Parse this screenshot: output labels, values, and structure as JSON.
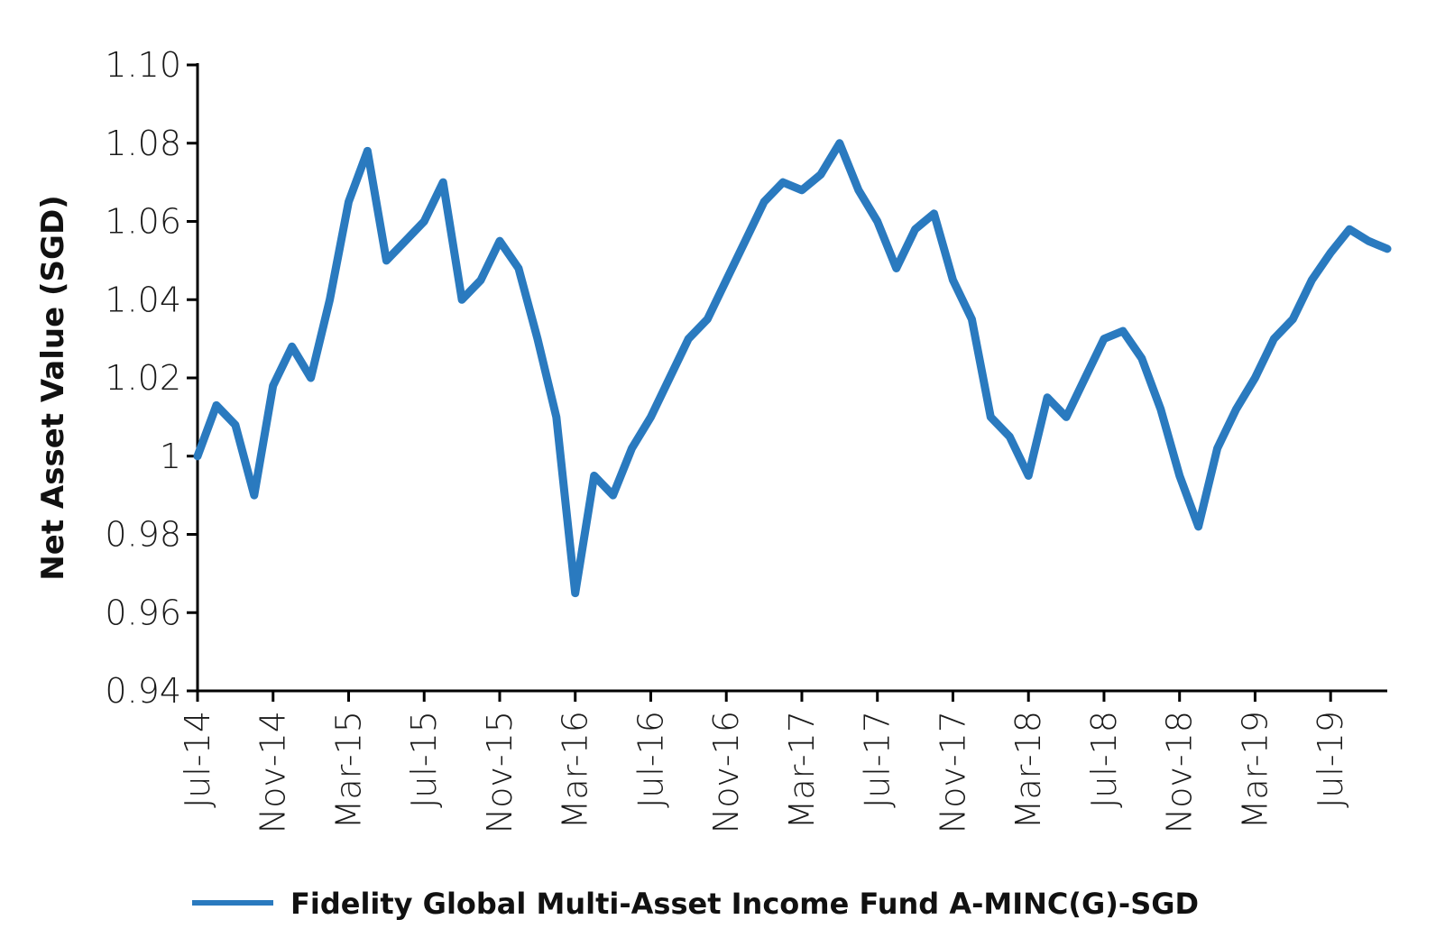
{
  "chart_data": {
    "type": "line",
    "title": "",
    "xlabel": "",
    "ylabel": "Net Asset Value (SGD)",
    "ylim": [
      0.94,
      1.1
    ],
    "y_ticks": [
      "0.94",
      "0.96",
      "0.98",
      "1",
      "1.02",
      "1.04",
      "1.06",
      "1.08",
      "1.10"
    ],
    "x_tick_labels": [
      "Jul-14",
      "Nov-14",
      "Mar-15",
      "Jul-15",
      "Nov-15",
      "Mar-16",
      "Jul-16",
      "Nov-16",
      "Mar-17",
      "Jul-17",
      "Nov-17",
      "Mar-18",
      "Jul-18",
      "Nov-18",
      "Mar-19",
      "Jul-19"
    ],
    "x_range": [
      "Jul-14",
      "Oct-19"
    ],
    "grid": false,
    "legend_position": "bottom",
    "series": [
      {
        "name": "Fidelity Global Multi-Asset Income Fund A-MINC(G)-SGD",
        "color": "#2a7abf",
        "x": [
          "Jul-14",
          "Aug-14",
          "Sep-14",
          "Oct-14",
          "Nov-14",
          "Dec-14",
          "Jan-15",
          "Feb-15",
          "Mar-15",
          "Apr-15",
          "May-15",
          "Jun-15",
          "Jul-15",
          "Aug-15",
          "Sep-15",
          "Oct-15",
          "Nov-15",
          "Dec-15",
          "Jan-16",
          "Feb-16",
          "Mar-16",
          "Apr-16",
          "May-16",
          "Jun-16",
          "Jul-16",
          "Aug-16",
          "Sep-16",
          "Oct-16",
          "Nov-16",
          "Dec-16",
          "Jan-17",
          "Feb-17",
          "Mar-17",
          "Apr-17",
          "May-17",
          "Jun-17",
          "Jul-17",
          "Aug-17",
          "Sep-17",
          "Oct-17",
          "Nov-17",
          "Dec-17",
          "Jan-18",
          "Feb-18",
          "Mar-18",
          "Apr-18",
          "May-18",
          "Jun-18",
          "Jul-18",
          "Aug-18",
          "Sep-18",
          "Oct-18",
          "Nov-18",
          "Dec-18",
          "Jan-19",
          "Feb-19",
          "Mar-19",
          "Apr-19",
          "May-19",
          "Jun-19",
          "Jul-19",
          "Aug-19",
          "Sep-19",
          "Oct-19"
        ],
        "values": [
          1.0,
          1.013,
          1.008,
          0.99,
          1.018,
          1.028,
          1.02,
          1.04,
          1.065,
          1.078,
          1.05,
          1.055,
          1.06,
          1.07,
          1.04,
          1.045,
          1.055,
          1.048,
          1.03,
          1.01,
          0.965,
          0.995,
          0.99,
          1.002,
          1.01,
          1.02,
          1.03,
          1.035,
          1.045,
          1.055,
          1.065,
          1.07,
          1.068,
          1.072,
          1.08,
          1.068,
          1.06,
          1.048,
          1.058,
          1.062,
          1.045,
          1.035,
          1.01,
          1.005,
          0.995,
          1.015,
          1.01,
          1.02,
          1.03,
          1.032,
          1.025,
          1.012,
          0.995,
          0.982,
          1.002,
          1.012,
          1.02,
          1.03,
          1.035,
          1.045,
          1.052,
          1.058,
          1.055,
          1.053
        ]
      }
    ]
  }
}
